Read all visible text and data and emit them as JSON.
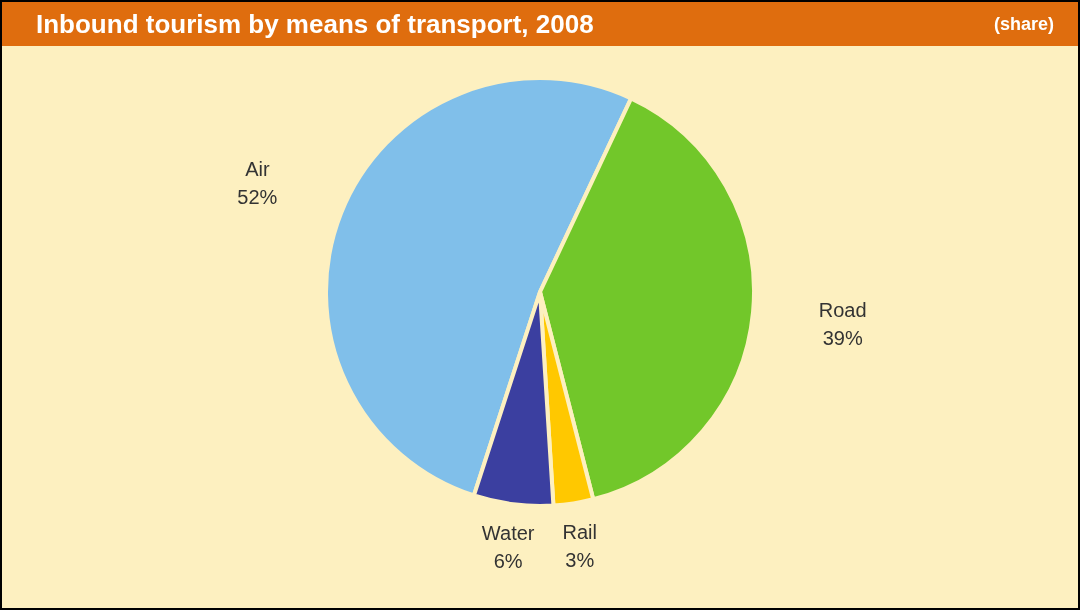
{
  "chart_data": {
    "type": "pie",
    "title": "Inbound tourism by means of transport, 2008",
    "subtitle": "(share)",
    "categories": [
      "Air",
      "Road",
      "Rail",
      "Water"
    ],
    "values": [
      52,
      39,
      3,
      6
    ],
    "value_labels": [
      "52%",
      "39%",
      "3%",
      "6%"
    ],
    "colors": [
      "#80bfea",
      "#72c72a",
      "#ffc800",
      "#3b3fa0"
    ],
    "legend": false
  }
}
